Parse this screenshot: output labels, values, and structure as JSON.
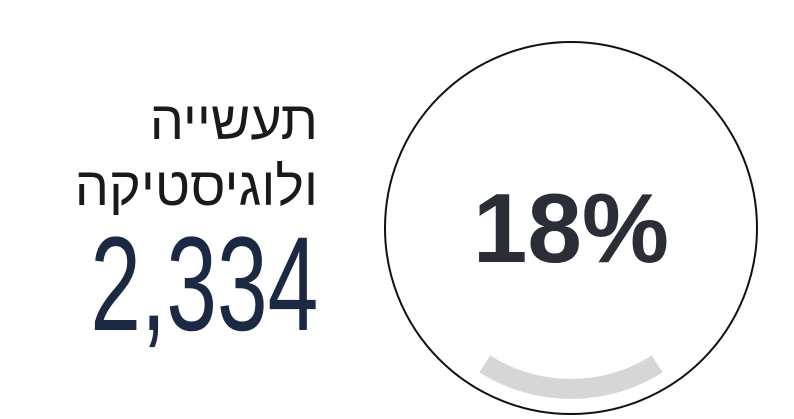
{
  "label_lines": [
    "תעשייה",
    "ולוגיסטיקה"
  ],
  "count": "2,334",
  "progress": {
    "value": 18,
    "label": "18%"
  }
}
